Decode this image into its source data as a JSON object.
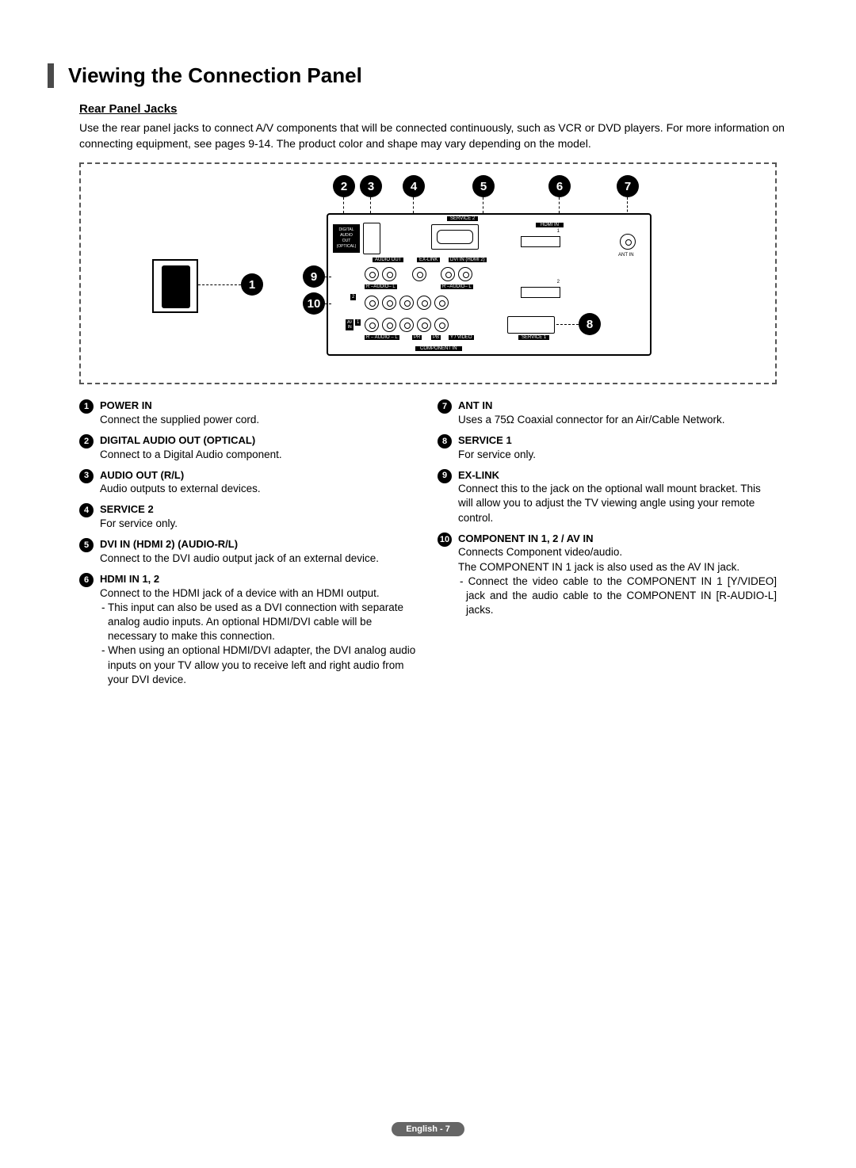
{
  "title": "Viewing the Connection Panel",
  "subtitle": "Rear Panel Jacks",
  "intro": "Use the rear panel jacks to connect A/V components that will be connected continuously, such as VCR or DVD players. For more information on connecting equipment, see pages 9-14. The product color and shape may vary depending on the model.",
  "diagram": {
    "callouts": [
      "1",
      "2",
      "3",
      "4",
      "5",
      "6",
      "7",
      "8",
      "9",
      "10"
    ],
    "port_labels": {
      "digital_audio": "DIGITAL\nAUDIO\nOUT\n(OPTICAL)",
      "service2": "SERVICE 2",
      "audio_out": "AUDIO OUT",
      "ex_link": "EX-LINK",
      "dvi_in": "DVI IN (HDMI 2)",
      "hdmi_in": "HDMI IN",
      "ant_in": "ANT IN",
      "av_in": "AV\nIN",
      "audio_rl": "R – AUDIO – L",
      "component_in": "COMPONENT IN",
      "service1": "SERVICE 1",
      "pr": "PR",
      "pb": "PB",
      "y_video": "Y / VIDEO"
    }
  },
  "left_items": [
    {
      "n": "1",
      "h": "POWER IN",
      "lines": [
        "Connect the supplied power cord."
      ]
    },
    {
      "n": "2",
      "h": "DIGITAL AUDIO OUT (OPTICAL)",
      "lines": [
        "Connect to a Digital Audio component."
      ]
    },
    {
      "n": "3",
      "h": "AUDIO OUT (R/L)",
      "lines": [
        "Audio outputs to external devices."
      ]
    },
    {
      "n": "4",
      "h": "SERVICE 2",
      "lines": [
        "For service only."
      ]
    },
    {
      "n": "5",
      "h": "DVI IN (HDMI 2) (AUDIO-R/L)",
      "lines": [
        "Connect to the DVI audio output jack of an external device."
      ]
    },
    {
      "n": "6",
      "h": "HDMI IN 1, 2",
      "lines": [
        "Connect to the HDMI jack of a device with an HDMI output."
      ],
      "dashes": [
        "This input can also be used as a DVI connection with separate analog audio inputs. An optional HDMI/DVI cable will be necessary to make this connection.",
        "When using an optional HDMI/DVI adapter, the DVI analog audio inputs on your TV allow you to receive left and right audio from your DVI device."
      ]
    }
  ],
  "right_items": [
    {
      "n": "7",
      "h": "ANT IN",
      "lines": [
        "Uses a 75Ω Coaxial connector for an Air/Cable Network."
      ]
    },
    {
      "n": "8",
      "h": "SERVICE 1",
      "lines": [
        "For service only."
      ]
    },
    {
      "n": "9",
      "h": "EX-LINK",
      "lines": [
        "Connect this to the jack on the optional wall mount bracket. This will allow you to adjust the TV viewing angle using your remote control."
      ]
    },
    {
      "n": "10",
      "h": "COMPONENT IN 1, 2 / AV IN",
      "lines": [
        "Connects Component video/audio.",
        "The COMPONENT IN 1 jack is also used as the AV IN jack."
      ],
      "dashes": [
        "Connect the video cable to the COMPONENT IN 1 [Y/VIDEO] jack and the audio cable to the COMPONENT IN [R-AUDIO-L] jacks."
      ],
      "justify_dashes": true
    }
  ],
  "footer": "English - 7"
}
